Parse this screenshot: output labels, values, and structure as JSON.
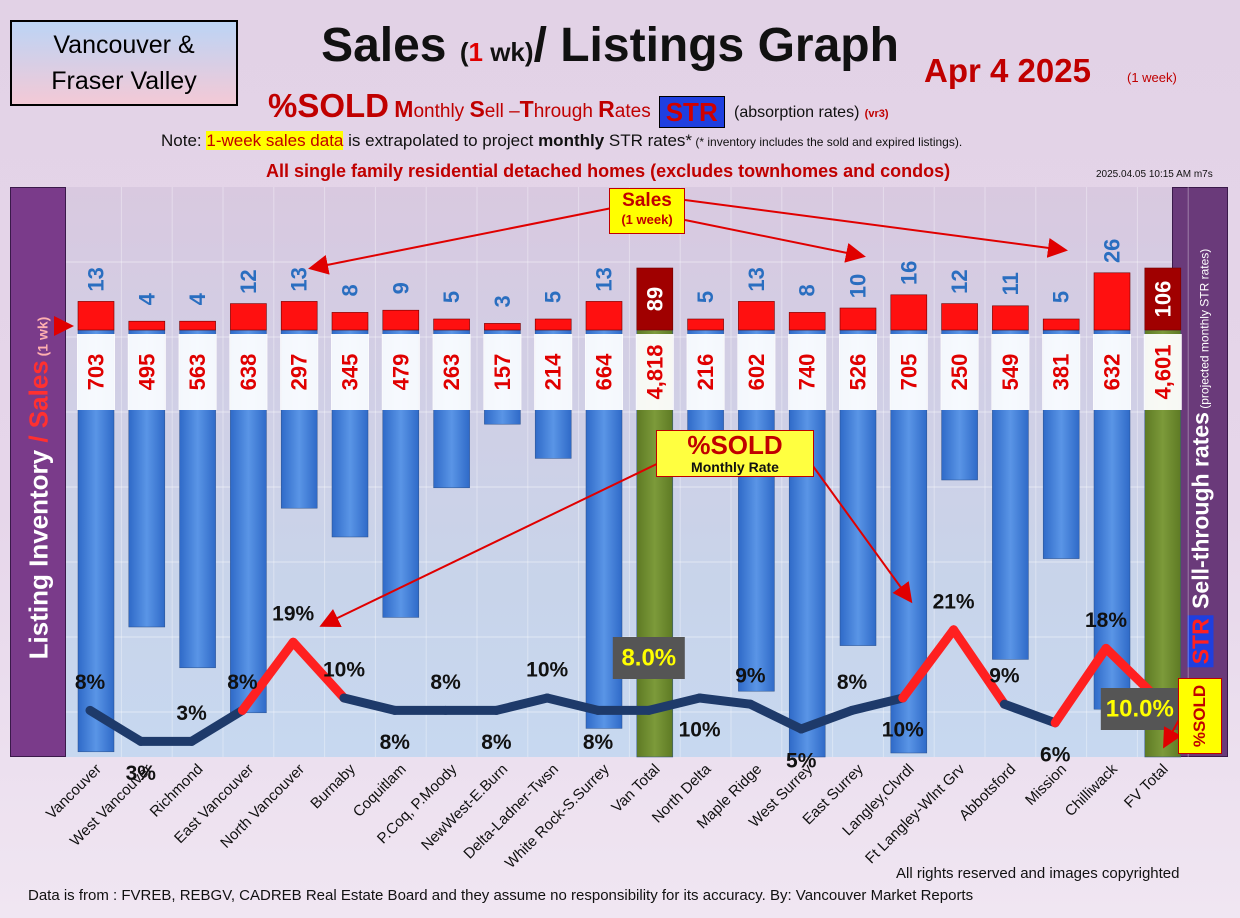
{
  "region": {
    "line1": "Vancouver &",
    "line2": "Fraser Valley"
  },
  "title": {
    "part1": "Sales ",
    "paren_open": "(",
    "wk_num": "1",
    "wk_text": " wk)",
    "part2": "/ Listings Graph"
  },
  "date": {
    "label": "Apr 4  2025",
    "note": "(1 week)"
  },
  "subtitle": {
    "sold": "%SOLD",
    "m_cap": "M",
    "m_rest": "onthly ",
    "s_cap": "S",
    "s_rest": "ell –",
    "t_cap": "T",
    "t_rest": "hrough ",
    "r_cap": "R",
    "r_rest": "ates",
    "str": "STR",
    "absorption": "(absorption rates)",
    "version": "(vr3)"
  },
  "note": {
    "prefix": "Note: ",
    "highlight": "1-week sales data",
    "mid": " is extrapolated to project ",
    "bold": "monthly",
    "suffix": " STR rates*",
    "footnote": " (* inventory includes the sold and expired listings)."
  },
  "scope": "All single family residential detached homes (excludes townhomes and condos)",
  "timestamp": "2025.04.05 10:15 AM m7s",
  "left_axis": {
    "part1": "Listing Inventory ",
    "slash": "/ ",
    "sales": "Sales",
    "wk": " (1 wk)"
  },
  "right_axis": {
    "sell": "Sell-through rates",
    "sub": " (projected monthly STR rates)",
    "str": "STR"
  },
  "callouts": {
    "sales_title": "Sales",
    "sales_sub": "(1 week)",
    "sold_title": "%SOLD",
    "sold_sub": "Monthly Rate",
    "str_rate": "%SOLD"
  },
  "copyright": "All rights reserved and  images copyrighted",
  "footer": "Data is from : FVREB, REBGV, CADREB Real Estate Board and they assume no responsibility for its accuracy. By: Vancouver Market Reports",
  "colors": {
    "inventory": "#4a86dd",
    "total_inventory": "#6d8a2e",
    "sales": "#ff1010",
    "total_sales": "#a00000",
    "line": "#1e3a6a",
    "line_high": "#ff2020",
    "sales_label": "#2a6ec0"
  },
  "chart_data": {
    "type": "bar",
    "categories": [
      "Vancouver",
      "West Vancouver",
      "Richmond",
      "East Vancouver",
      "North Vancouver",
      "Burnaby",
      "Coquitlam",
      "P.Coq, P.Moody",
      "NewWest-E.Burn",
      "Delta-Ladner-Twsn",
      "White Rock-S.Surrey",
      "Van Total",
      "North Delta",
      "Maple Ridge",
      "West Surrey",
      "East Surrey",
      "Langley,Clvrdl",
      "Ft Langley-Wlnt Grv",
      "Abbotsford",
      "Mission",
      "Chilliwack",
      "FV Total"
    ],
    "series": [
      {
        "key": "inventory",
        "values": [
          703,
          495,
          563,
          638,
          297,
          345,
          479,
          263,
          157,
          214,
          664,
          4818,
          216,
          602,
          740,
          526,
          705,
          250,
          549,
          381,
          632,
          4601
        ],
        "labels": [
          "703",
          "495",
          "563",
          "638",
          "297",
          "345",
          "479",
          "263",
          "157",
          "214",
          "664",
          "4,818",
          "216",
          "602",
          "740",
          "526",
          "705",
          "250",
          "549",
          "381",
          "632",
          "4,601"
        ]
      },
      {
        "key": "sales",
        "values": [
          13,
          4,
          4,
          12,
          13,
          8,
          9,
          5,
          3,
          5,
          13,
          89,
          5,
          13,
          8,
          10,
          16,
          12,
          11,
          5,
          26,
          106
        ]
      },
      {
        "key": "str",
        "values": [
          8,
          3,
          3,
          8,
          19,
          10,
          8,
          8,
          8,
          10,
          8,
          8.0,
          10,
          9,
          5,
          8,
          10,
          21,
          9,
          6,
          18,
          10.0
        ],
        "labels": [
          "8%",
          "3%",
          "3%",
          "8%",
          "19%",
          "10%",
          "8%",
          "8%",
          "8%",
          "10%",
          "8%",
          "8.0%",
          "10%",
          "9%",
          "5%",
          "8%",
          "10%",
          "21%",
          "9%",
          "6%",
          "18%",
          "10.0%"
        ]
      }
    ],
    "total_indices": [
      11,
      21
    ]
  }
}
